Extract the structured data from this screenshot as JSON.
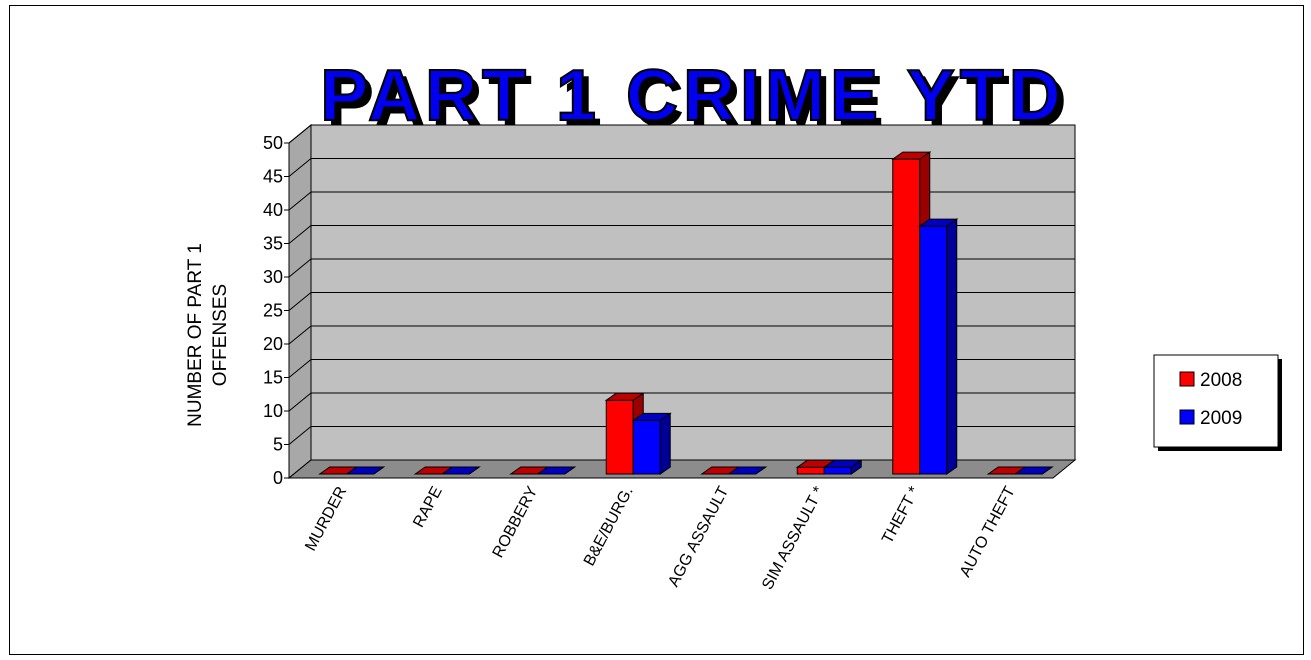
{
  "chart_data": {
    "type": "bar",
    "title": "PART 1 CRIME YTD",
    "ylabel": "NUMBER OF PART 1 OFFENSES",
    "ylabel_lines": [
      "NUMBER OF PART 1",
      "OFFENSES"
    ],
    "xlabel": "",
    "ylim": [
      0,
      50
    ],
    "yticks": [
      0,
      5,
      10,
      15,
      20,
      25,
      30,
      35,
      40,
      45,
      50
    ],
    "categories": [
      "MURDER",
      "RAPE",
      "ROBBERY",
      "B&E/BURG.",
      "AGG ASSAULT",
      "SIM ASSAULT *",
      "THEFT *",
      "AUTO THEFT"
    ],
    "series": [
      {
        "name": "2008",
        "values": [
          0,
          0,
          0,
          11,
          0,
          1,
          47,
          0
        ],
        "color": "#ff0000"
      },
      {
        "name": "2009",
        "values": [
          0,
          0,
          0,
          8,
          0,
          1,
          37,
          0
        ],
        "color": "#0000ff"
      }
    ],
    "grid": true,
    "legend_position": "right",
    "wall_color": "#c0c0c0"
  }
}
